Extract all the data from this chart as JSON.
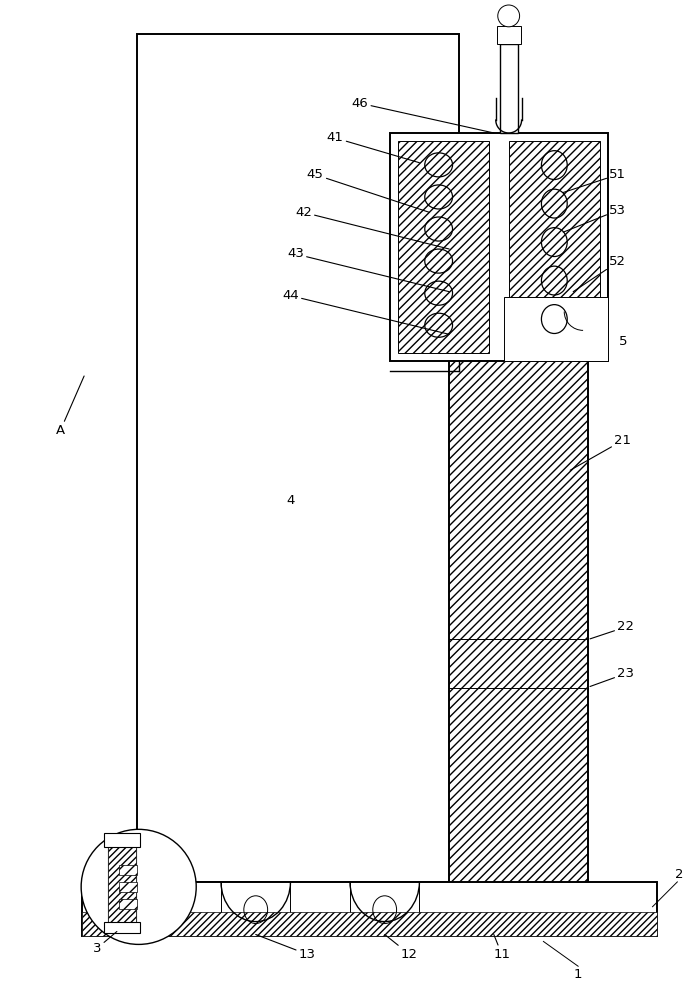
{
  "bg_color": "#ffffff",
  "line_color": "#000000",
  "fig_width": 6.93,
  "fig_height": 10.0,
  "label_fontsize": 9.5
}
